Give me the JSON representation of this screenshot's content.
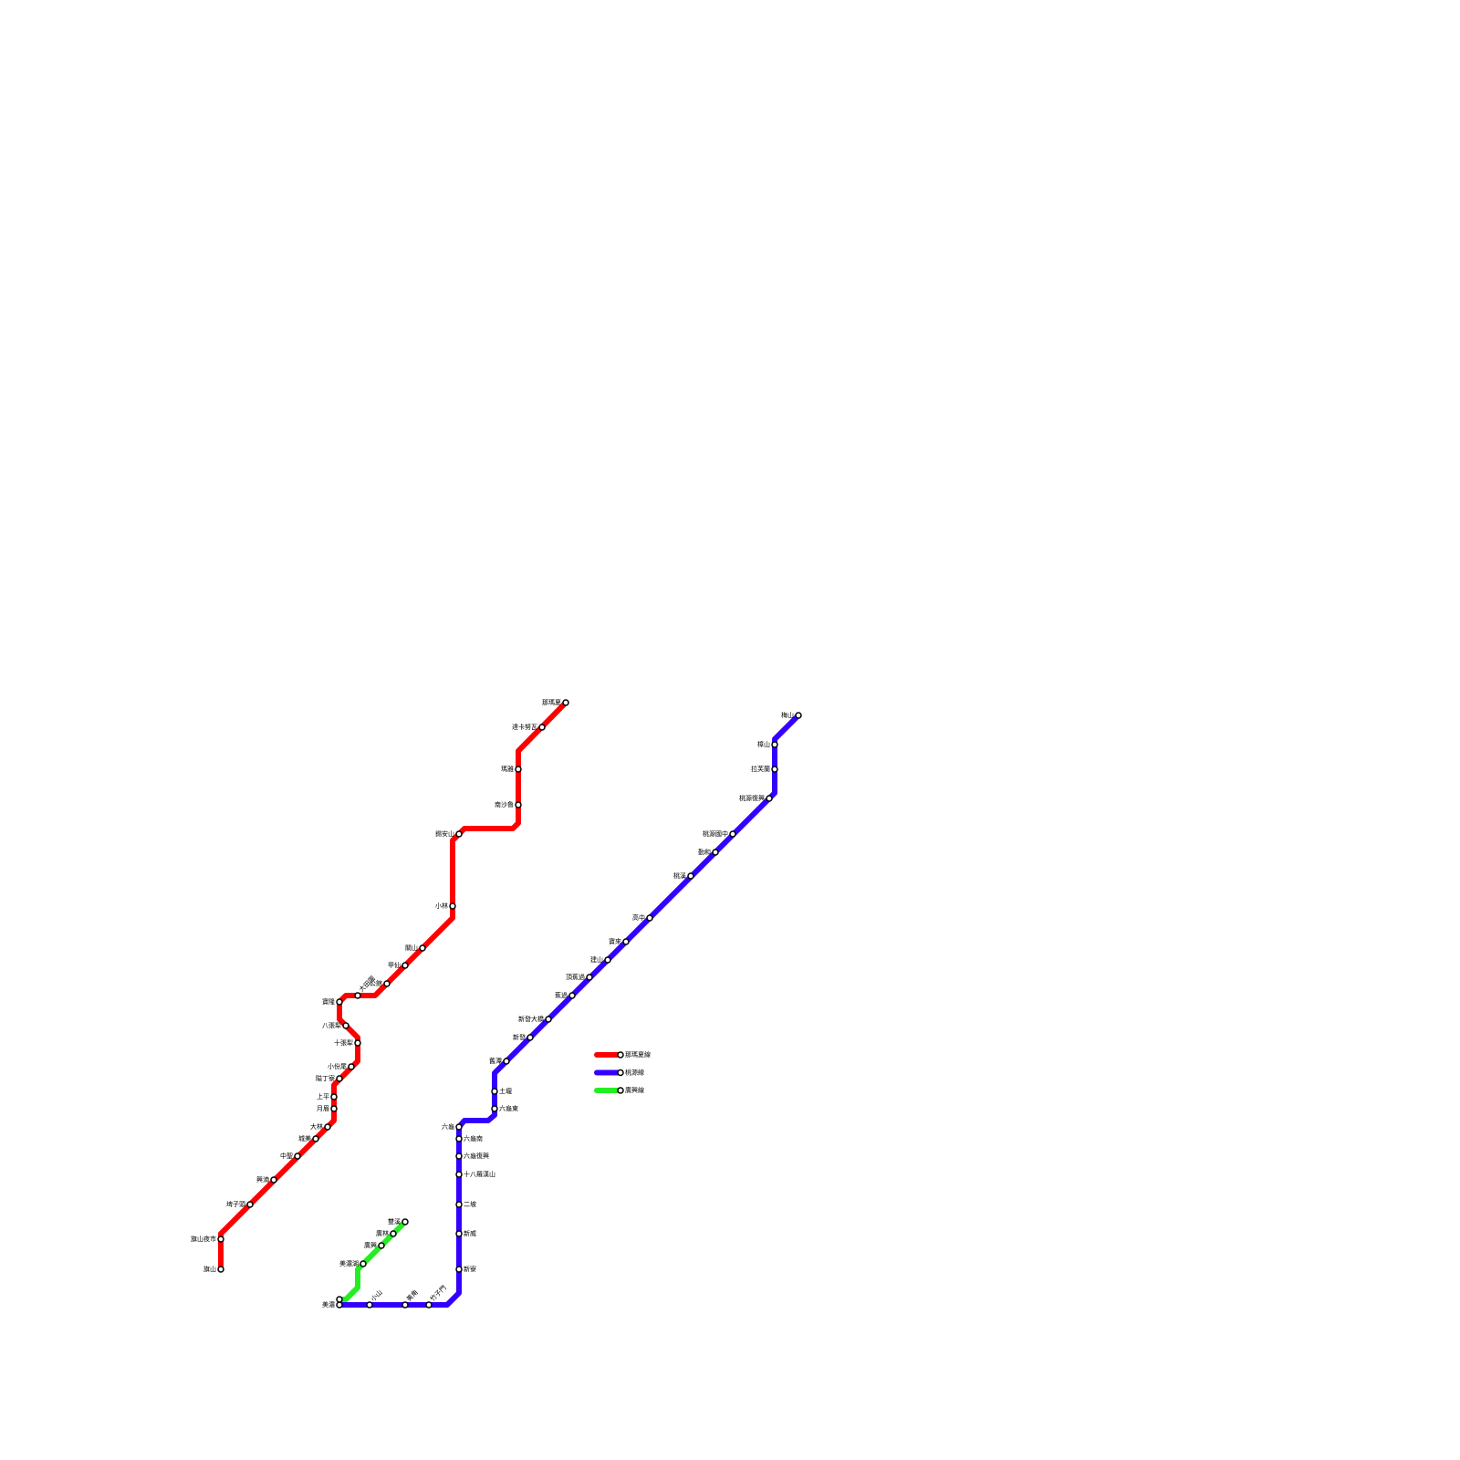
{
  "lines": [
    {
      "name": "那瑪夏線",
      "color": "#ff0000",
      "stations": [
        "那瑪夏",
        "達卡努瓦",
        "瑪雅",
        "南沙魯",
        "錫安山",
        "小林",
        "關山",
        "甲仙",
        "公館",
        "大田園",
        "寶隆",
        "八張犁",
        "十張犁",
        "小份尾",
        "隘丁寮",
        "上平",
        "月眉",
        "大林",
        "城美",
        "中聖",
        "興湳",
        "埤子頭",
        "旗山夜市",
        "旗山"
      ]
    },
    {
      "name": "桃源線",
      "color": "#3300ff",
      "stations": [
        "梅山",
        "樟山",
        "拉芙蘭",
        "桃源復興",
        "桃源國中",
        "勤和",
        "桃溪",
        "高中",
        "寶來",
        "建山",
        "頂蕉過",
        "蕉過",
        "新發大橋",
        "新發",
        "舊潭",
        "土壠",
        "六龜東",
        "六龜",
        "六龜南",
        "六龜復興",
        "十八羅漢山",
        "二坡",
        "新威",
        "新寮",
        "竹子門",
        "美角",
        "小山",
        "美濃"
      ]
    },
    {
      "name": "廣興線",
      "color": "#22ee22",
      "stations": [
        "雙溪",
        "廣林",
        "廣興",
        "美濃湖"
      ]
    }
  ]
}
